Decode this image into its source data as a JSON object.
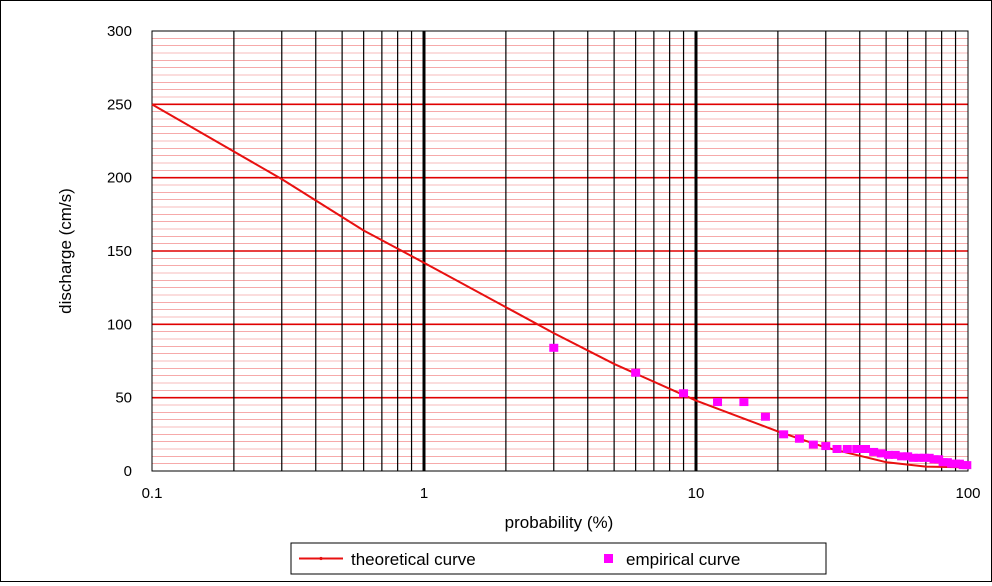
{
  "chart_data": {
    "type": "line",
    "x_scale": "log",
    "xlabel": "probability  (%)",
    "ylabel": "discharge  (cm/s)",
    "xlim": [
      0.1,
      100
    ],
    "ylim": [
      0,
      300
    ],
    "x_ticks": [
      "0.1",
      "1",
      "10",
      "100"
    ],
    "y_ticks": [
      "0",
      "50",
      "100",
      "150",
      "200",
      "250",
      "300"
    ],
    "grid": true,
    "legend_position": "bottom",
    "colors": {
      "theoretical": "#e81010",
      "empirical": "#ff00ff",
      "grid_major": "#e00000",
      "grid_minor": "#f07878",
      "grid_vertical": "#000000"
    },
    "series": [
      {
        "name": "theoretical curve",
        "kind": "line",
        "x": [
          0.1,
          0.3,
          0.6,
          1,
          3,
          5,
          10,
          20,
          30,
          50,
          70,
          100
        ],
        "y": [
          250,
          199,
          164,
          142,
          94,
          73,
          48,
          27,
          16,
          6,
          3,
          2.5
        ]
      },
      {
        "name": "empirical curve",
        "kind": "scatter",
        "x": [
          3,
          6,
          9,
          12,
          15,
          18,
          21,
          24,
          27,
          30,
          33,
          36,
          39,
          42,
          45,
          48,
          51,
          54,
          57,
          60,
          63,
          66,
          69,
          72,
          75,
          78,
          81,
          84,
          87,
          90,
          93,
          96,
          99
        ],
        "y": [
          84,
          67,
          53,
          47,
          47,
          37,
          25,
          22,
          18,
          17,
          15,
          15,
          15,
          15,
          13,
          12,
          11,
          11,
          10,
          10,
          9,
          9,
          9,
          9,
          8,
          8,
          6,
          6,
          5,
          5,
          5,
          4,
          4
        ]
      }
    ]
  }
}
